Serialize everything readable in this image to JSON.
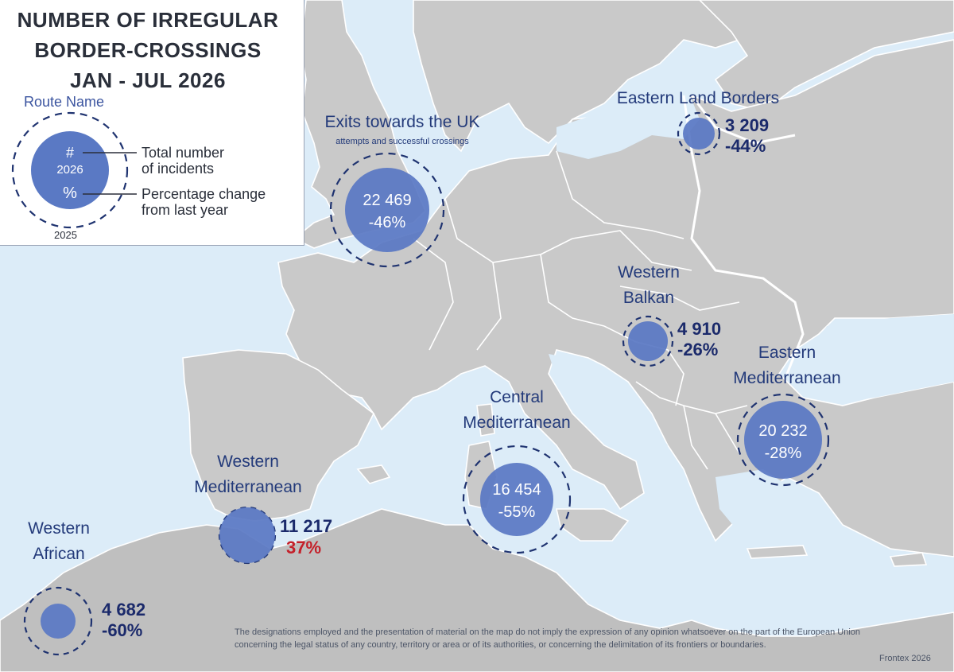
{
  "title_lines": [
    "NUMBER OF IRREGULAR",
    "BORDER-CROSSINGS",
    "JAN - JUL  2026"
  ],
  "legend": {
    "route_name": "Route Name",
    "symbol_top": "#",
    "symbol_year": "2026",
    "symbol_bottom": "%",
    "total_label_line1": "Total number",
    "total_label_line2": "of incidents",
    "change_label_line1": "Percentage change",
    "change_label_line2": "from last year",
    "ring_year": "2025"
  },
  "routes": [
    {
      "id": "uk-exits",
      "name_lines": [
        "Exits towards the UK"
      ],
      "subtitle": "attempts and successful crossings",
      "total": "22 469",
      "change": "-46%",
      "change_sign": "negative"
    },
    {
      "id": "eastern-land",
      "name_lines": [
        "Eastern Land Borders"
      ],
      "total": "3 209",
      "change": "-44%",
      "change_sign": "negative"
    },
    {
      "id": "western-balkan",
      "name_lines": [
        "Western",
        "Balkan"
      ],
      "total": "4 910",
      "change": "-26%",
      "change_sign": "negative"
    },
    {
      "id": "eastern-med",
      "name_lines": [
        "Eastern",
        "Mediterranean"
      ],
      "total": "20 232",
      "change": "-28%",
      "change_sign": "negative"
    },
    {
      "id": "central-med",
      "name_lines": [
        "Central",
        "Mediterranean"
      ],
      "total": "16 454",
      "change": "-55%",
      "change_sign": "negative"
    },
    {
      "id": "western-med",
      "name_lines": [
        "Western",
        "Mediterranean"
      ],
      "total": "11 217",
      "change": "37%",
      "change_sign": "positive"
    },
    {
      "id": "western-african",
      "name_lines": [
        "Western",
        "African"
      ],
      "total": "4 682",
      "change": "-60%",
      "change_sign": "negative"
    }
  ],
  "disclaimer": "The designations employed and the presentation of material on the map do not imply the expression of any opinion whatsoever on the part of the European Union concerning the legal status of any country, territory or area or of its authorities, or concerning the delimitation of its frontiers or boundaries.",
  "credit": "Frontex 2026",
  "colors": {
    "sea": "#dcecf8",
    "land": "#c9c9c9",
    "bubble": "#5a79c4",
    "ring": "#1f3370",
    "positive": "#c4202a",
    "text": "#1b2a6b"
  }
}
